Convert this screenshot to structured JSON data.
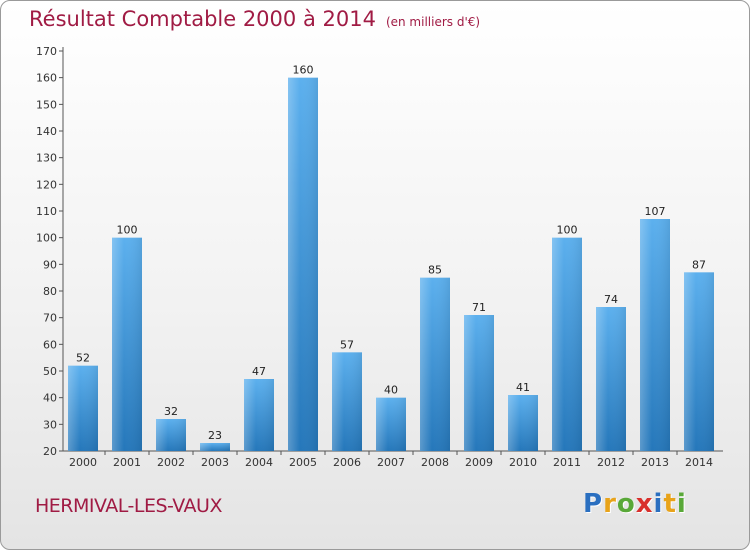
{
  "chart_data": {
    "type": "bar",
    "title": "Résultat Comptable 2000 à 2014",
    "subtitle": "(en milliers d'€)",
    "categories": [
      "2000",
      "2001",
      "2002",
      "2003",
      "2004",
      "2005",
      "2006",
      "2007",
      "2008",
      "2009",
      "2010",
      "2011",
      "2012",
      "2013",
      "2014"
    ],
    "values": [
      52,
      100,
      32,
      23,
      47,
      160,
      57,
      40,
      85,
      71,
      41,
      100,
      74,
      107,
      87
    ],
    "ylim": [
      20,
      170
    ],
    "yticks": [
      20,
      30,
      40,
      50,
      60,
      70,
      80,
      90,
      100,
      110,
      120,
      130,
      140,
      150,
      160,
      170
    ],
    "grid": false,
    "bar_color": "#3d8fd6",
    "label_color": "#a01b44"
  },
  "location": "HERMIVAL-LES-VAUX",
  "logo": {
    "letters": [
      "P",
      "r",
      "o",
      "x",
      "i",
      "t",
      "i"
    ],
    "colors": [
      "#2a6fc0",
      "#e8a31a",
      "#59a838",
      "#d9302c",
      "#2a6fc0",
      "#e8a31a",
      "#59a838"
    ]
  }
}
